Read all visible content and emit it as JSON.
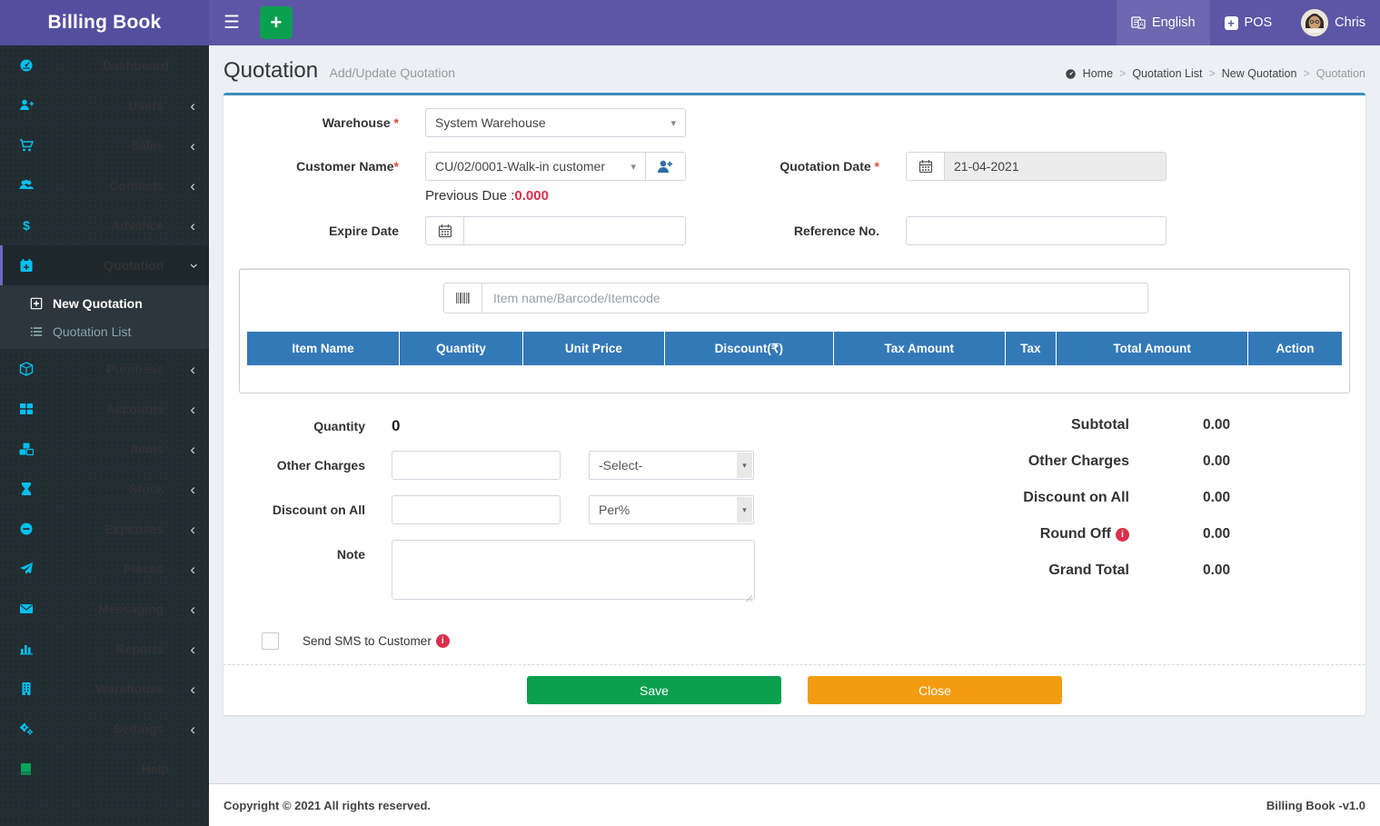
{
  "app": {
    "title": "Billing Book",
    "copyright": "Copyright © 2021 All rights reserved.",
    "version_label": "Billing Book -v1.0"
  },
  "navbar": {
    "language_label": "English",
    "pos_label": "POS",
    "user_name": "Chris"
  },
  "sidebar": {
    "items": [
      {
        "label": "Dashboard",
        "icon": "dashboard",
        "chevron": null
      },
      {
        "label": "Users",
        "icon": "user-plus",
        "chevron": "left"
      },
      {
        "label": "Sales",
        "icon": "cart",
        "chevron": "left"
      },
      {
        "label": "Contacts",
        "icon": "group",
        "chevron": "left"
      },
      {
        "label": "Advance",
        "icon": "dollar",
        "chevron": "left"
      },
      {
        "label": "Quotation",
        "icon": "calendar-plus",
        "chevron": "down",
        "active": true,
        "children": [
          {
            "label": "New Quotation",
            "icon": "plus-square",
            "current": true
          },
          {
            "label": "Quotation List",
            "icon": "list",
            "current": false
          }
        ]
      },
      {
        "label": "Purchase",
        "icon": "cube",
        "chevron": "left"
      },
      {
        "label": "Accounts",
        "icon": "th-large",
        "chevron": "left"
      },
      {
        "label": "Items",
        "icon": "cubes",
        "chevron": "left"
      },
      {
        "label": "Stock",
        "icon": "hourglass",
        "chevron": "left"
      },
      {
        "label": "Expenses",
        "icon": "minus-circle",
        "chevron": "left"
      },
      {
        "label": "Places",
        "icon": "send",
        "chevron": "left"
      },
      {
        "label": "Messaging",
        "icon": "envelope",
        "chevron": "left"
      },
      {
        "label": "Reports",
        "icon": "bar-chart",
        "chevron": "left"
      },
      {
        "label": "Warehouse",
        "icon": "building",
        "chevron": "left"
      },
      {
        "label": "Settings",
        "icon": "gears",
        "chevron": "left"
      },
      {
        "label": "Help",
        "icon": "book",
        "icon_color": "green",
        "chevron": null
      }
    ]
  },
  "page": {
    "title": "Quotation",
    "subtitle": "Add/Update Quotation",
    "breadcrumb": [
      "Home",
      "Quotation List",
      "New Quotation",
      "Quotation"
    ]
  },
  "form": {
    "warehouse_label": "Warehouse",
    "warehouse_value": "System Warehouse",
    "customer_label": "Customer Name",
    "customer_value": "CU/02/0001-Walk-in customer",
    "previous_due_label": "Previous Due :",
    "previous_due_value": "0.000",
    "quotation_date_label": "Quotation Date",
    "quotation_date_value": "21-04-2021",
    "expire_date_label": "Expire Date",
    "expire_date_value": "",
    "reference_no_label": "Reference No.",
    "reference_no_value": ""
  },
  "item_search": {
    "placeholder": "Item name/Barcode/Itemcode"
  },
  "items_table": {
    "columns": [
      "Item Name",
      "Quantity",
      "Unit Price",
      "Discount(₹)",
      "Tax Amount",
      "Tax",
      "Total Amount",
      "Action"
    ],
    "rows": []
  },
  "summary_form": {
    "quantity_label": "Quantity",
    "quantity_value": "0",
    "other_charges_label": "Other Charges",
    "other_charges_value": "",
    "other_charges_select_value": "-Select-",
    "discount_on_all_label": "Discount on All",
    "discount_on_all_value": "",
    "discount_on_all_select_value": "Per%",
    "note_label": "Note",
    "note_value": "",
    "send_sms_label": "Send SMS to Customer",
    "send_sms_checked": false
  },
  "totals": {
    "rows": [
      {
        "label": "Subtotal",
        "value": "0.00",
        "info": false
      },
      {
        "label": "Other Charges",
        "value": "0.00",
        "info": false
      },
      {
        "label": "Discount on All",
        "value": "0.00",
        "info": false
      },
      {
        "label": "Round Off",
        "value": "0.00",
        "info": true
      },
      {
        "label": "Grand Total",
        "value": "0.00",
        "info": false
      }
    ]
  },
  "actions": {
    "save_label": "Save",
    "close_label": "Close"
  },
  "colors": {
    "navbar_purple": "#5c56a6",
    "sidebar_dark": "#222d32",
    "icon_cyan": "#00c0ef",
    "table_header_blue": "#3379b7",
    "save_green": "#0aa04e",
    "close_orange": "#f39c12",
    "danger_red": "#dd4b39",
    "panel_top_blue": "#3c8dbc"
  }
}
